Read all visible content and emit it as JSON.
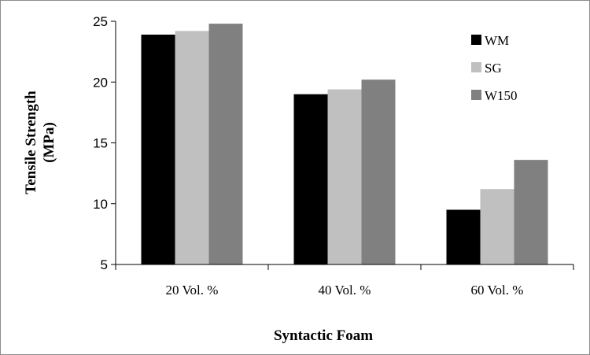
{
  "chart_data": {
    "type": "bar",
    "title": "",
    "xlabel": "Syntactic Foam",
    "ylabel_lines": [
      "Tensile Strength",
      "(MPa)"
    ],
    "categories": [
      "20 Vol. %",
      "40 Vol. %",
      "60 Vol. %"
    ],
    "series": [
      {
        "name": "WM",
        "values": [
          23.9,
          19.0,
          9.5
        ],
        "color": "#000000"
      },
      {
        "name": "SG",
        "values": [
          24.2,
          19.4,
          11.2
        ],
        "color": "#c0c0c0"
      },
      {
        "name": "W150",
        "values": [
          24.8,
          20.2,
          13.6
        ],
        "color": "#808080"
      }
    ],
    "ylim": [
      5,
      25
    ],
    "yticks": [
      "5",
      "10",
      "15",
      "20",
      "25"
    ],
    "grid": false,
    "legend_position": "top-right"
  }
}
